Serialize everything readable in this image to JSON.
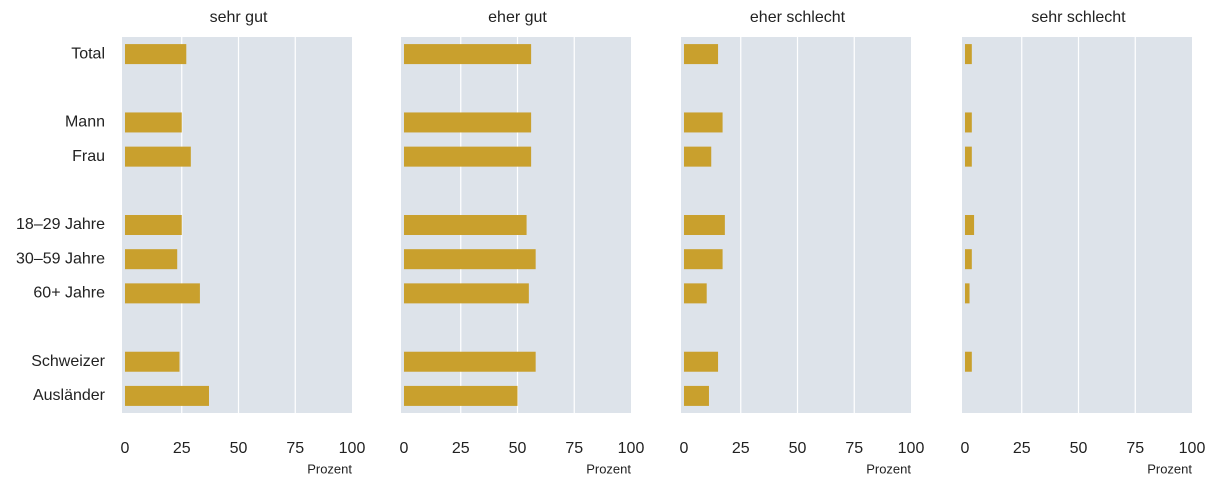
{
  "chart_data": {
    "type": "bar",
    "orientation": "horizontal",
    "categories": [
      "Total",
      null,
      "Mann",
      "Frau",
      null,
      "18–29 Jahre",
      "30–59 Jahre",
      "60+ Jahre",
      null,
      "Schweizer",
      "Ausländer"
    ],
    "series": [
      {
        "name": "sehr gut",
        "color": "#c9a02d",
        "values": [
          27,
          null,
          25,
          29,
          null,
          25,
          23,
          33,
          null,
          24,
          37
        ]
      },
      {
        "name": "eher gut",
        "color": "#c9a02d",
        "values": [
          56,
          null,
          56,
          56,
          null,
          54,
          58,
          55,
          null,
          58,
          50
        ]
      },
      {
        "name": "eher schlecht",
        "color": "#c9a02d",
        "values": [
          15,
          null,
          17,
          12,
          null,
          18,
          17,
          10,
          null,
          15,
          11
        ]
      },
      {
        "name": "sehr schlecht",
        "color": "#c9a02d",
        "values": [
          3,
          null,
          3,
          3,
          null,
          4,
          3,
          2,
          null,
          3,
          null
        ]
      }
    ],
    "xlabel": "Prozent",
    "xlim": [
      0,
      100
    ],
    "xticks": [
      0,
      25,
      50,
      75,
      100
    ],
    "grid": true
  }
}
